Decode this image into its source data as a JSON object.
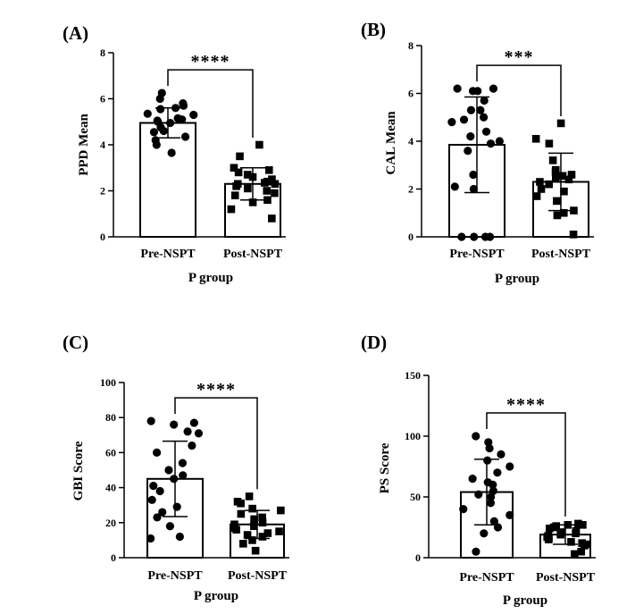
{
  "chart_data": [
    {
      "type": "bar",
      "panel": "(A)",
      "ylabel": "PPD Mean",
      "xlabel": "P group",
      "categories": [
        "Pre-NSPT",
        "Post-NSPT"
      ],
      "ylim": [
        0,
        8
      ],
      "yticks": [
        0,
        2,
        4,
        6,
        8
      ],
      "means": [
        4.95,
        2.3
      ],
      "sd": [
        0.65,
        0.7
      ],
      "points": [
        [
          6.25,
          6.0,
          5.8,
          5.7,
          5.6,
          5.55,
          5.35,
          5.3,
          5.15,
          5.1,
          5.05,
          5.0,
          4.95,
          4.75,
          4.6,
          4.55,
          4.35,
          4.2,
          4.0,
          3.65
        ],
        [
          4.0,
          3.5,
          3.0,
          2.9,
          2.8,
          2.7,
          2.6,
          2.5,
          2.4,
          2.35,
          2.3,
          2.3,
          2.2,
          2.1,
          2.0,
          1.9,
          1.8,
          1.6,
          1.5,
          1.2,
          0.8
        ]
      ],
      "markers": [
        "circle",
        "square"
      ],
      "significance": "****"
    },
    {
      "type": "bar",
      "panel": "(B)",
      "ylabel": "CAL Mean",
      "xlabel": "P group",
      "categories": [
        "Pre-NSPT",
        "Post-NSPT"
      ],
      "ylim": [
        0,
        8
      ],
      "yticks": [
        0,
        2,
        4,
        6,
        8
      ],
      "means": [
        3.85,
        2.3
      ],
      "sd": [
        2.0,
        1.2
      ],
      "points": [
        [
          6.2,
          6.2,
          6.1,
          6.1,
          5.7,
          5.3,
          5.3,
          5.0,
          4.9,
          4.8,
          4.4,
          4.2,
          4.0,
          3.9,
          3.6,
          2.6,
          2.1,
          2.0,
          0.0,
          0.0,
          0.0,
          0.0
        ],
        [
          4.75,
          4.1,
          3.9,
          3.2,
          2.8,
          2.7,
          2.6,
          2.55,
          2.5,
          2.4,
          2.3,
          2.2,
          2.0,
          1.9,
          1.7,
          1.5,
          1.1,
          1.0,
          0.9,
          0.1
        ]
      ],
      "markers": [
        "circle",
        "square"
      ],
      "significance": "***"
    },
    {
      "type": "bar",
      "panel": "(C)",
      "ylabel": "GBI Score",
      "xlabel": "P group",
      "categories": [
        "Pre-NSPT",
        "Post-NSPT"
      ],
      "ylim": [
        0,
        100
      ],
      "yticks": [
        0,
        20,
        40,
        60,
        80,
        100
      ],
      "means": [
        45,
        19
      ],
      "sd": [
        21.5,
        8.0
      ],
      "points": [
        [
          78,
          77,
          76,
          72,
          71,
          64,
          60,
          54,
          50,
          47,
          45,
          41,
          38,
          33,
          29,
          26,
          23,
          18,
          12,
          11
        ],
        [
          35,
          32,
          31,
          28,
          27,
          25,
          23,
          22,
          20,
          19,
          18,
          17,
          16,
          15,
          14,
          13,
          12,
          10,
          8,
          4
        ]
      ],
      "markers": [
        "circle",
        "square"
      ],
      "significance": "****"
    },
    {
      "type": "bar",
      "panel": "(D)",
      "ylabel": "PS Score",
      "xlabel": "P group",
      "categories": [
        "Pre-NSPT",
        "Post-NSPT"
      ],
      "ylim": [
        0,
        150
      ],
      "yticks": [
        0,
        50,
        100,
        150
      ],
      "means": [
        54,
        19
      ],
      "sd": [
        27,
        8
      ],
      "points": [
        [
          100,
          95,
          90,
          85,
          80,
          75,
          70,
          65,
          62,
          60,
          55,
          52,
          50,
          45,
          40,
          35,
          30,
          25,
          20,
          5
        ],
        [
          28,
          27,
          27,
          26,
          25,
          24,
          22,
          21,
          20,
          19,
          18,
          17,
          16,
          15,
          13,
          12,
          11,
          10,
          5,
          3
        ]
      ],
      "markers": [
        "circle",
        "square"
      ],
      "significance": "****"
    }
  ]
}
